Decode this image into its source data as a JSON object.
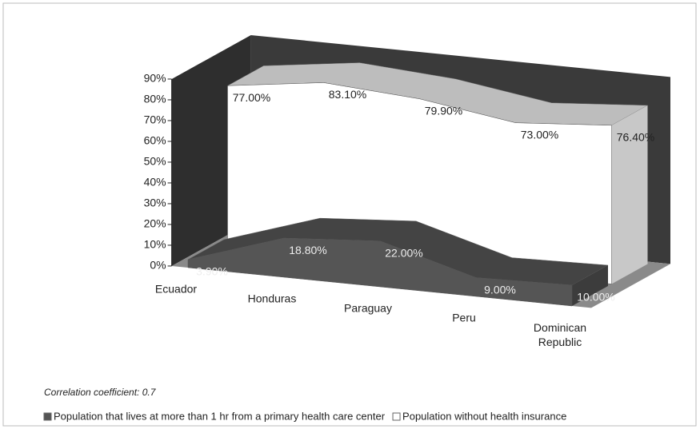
{
  "chart_data": {
    "type": "area",
    "categories": [
      "Ecuador",
      "Honduras",
      "Paraguay",
      "Peru",
      "Dominican Republic"
    ],
    "series": [
      {
        "name": "Population that lives at more than 1 hr from a primary health care center",
        "color": "#555555",
        "values": [
          3.9,
          18.8,
          22.0,
          9.0,
          10.0
        ],
        "value_labels": [
          "3.90%",
          "18.80%",
          "22.00%",
          "9.00%",
          "10.00%"
        ]
      },
      {
        "name": "Population without health insurance",
        "color": "#ffffff",
        "values": [
          77.0,
          83.1,
          79.9,
          73.0,
          76.4
        ],
        "value_labels": [
          "77.00%",
          "83.10%",
          "79.90%",
          "73.00%",
          "76.40%"
        ]
      }
    ],
    "ylim": [
      0,
      90
    ],
    "yticks": [
      {
        "value": 0,
        "label": "0%"
      },
      {
        "value": 10,
        "label": "10%"
      },
      {
        "value": 20,
        "label": "20%"
      },
      {
        "value": 30,
        "label": "30%"
      },
      {
        "value": 40,
        "label": "40%"
      },
      {
        "value": 50,
        "label": "50%"
      },
      {
        "value": 60,
        "label": "60%"
      },
      {
        "value": 70,
        "label": "70%"
      },
      {
        "value": 80,
        "label": "80%"
      },
      {
        "value": 90,
        "label": "90%"
      }
    ],
    "annotations": [
      "Correlation coefficient: 0.7"
    ]
  }
}
